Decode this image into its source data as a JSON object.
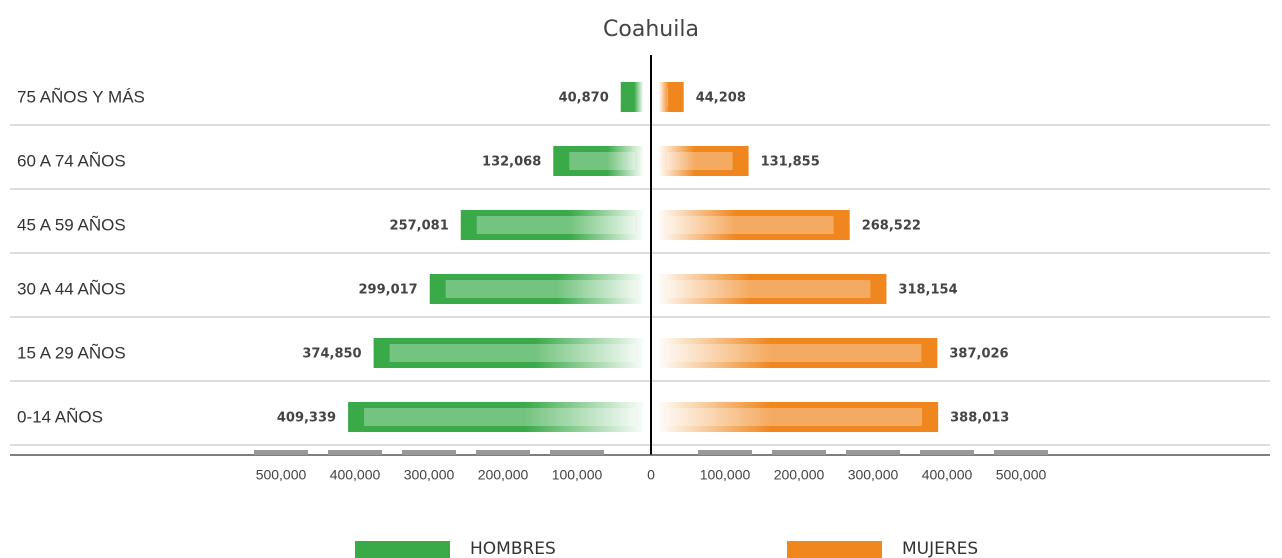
{
  "chart_data": {
    "type": "population-pyramid",
    "title": "Coahuila",
    "categories": [
      "75 AÑOS Y MÁS",
      "60 A 74 AÑOS",
      "45 A 59 AÑOS",
      "30 A 44 AÑOS",
      "15 A 29 AÑOS",
      "0-14 AÑOS"
    ],
    "series": [
      {
        "name": "HOMBRES",
        "color": "#3aaa49",
        "values": [
          40870,
          132068,
          257081,
          299017,
          374850,
          409339
        ],
        "value_labels": [
          "40,870",
          "132,068",
          "257,081",
          "299,017",
          "374,850",
          "409,339"
        ]
      },
      {
        "name": "MUJERES",
        "color": "#f0871e",
        "values": [
          44208,
          131855,
          268522,
          318154,
          387026,
          388013
        ],
        "value_labels": [
          "44,208",
          "131,855",
          "268,522",
          "318,154",
          "387,026",
          "388,013"
        ]
      }
    ],
    "xlim": [
      -500000,
      500000
    ],
    "xticks": [
      {
        "value": -500000,
        "label": "500,000"
      },
      {
        "value": -400000,
        "label": "400,000"
      },
      {
        "value": -300000,
        "label": "300,000"
      },
      {
        "value": -200000,
        "label": "200,000"
      },
      {
        "value": -100000,
        "label": "100,000"
      },
      0,
      {
        "value": 100000,
        "label": "100,000"
      },
      {
        "value": 200000,
        "label": "200,000"
      },
      {
        "value": 300000,
        "label": "300,000"
      },
      {
        "value": 400000,
        "label": "400,000"
      },
      {
        "value": 500000,
        "label": "500,000"
      }
    ]
  }
}
